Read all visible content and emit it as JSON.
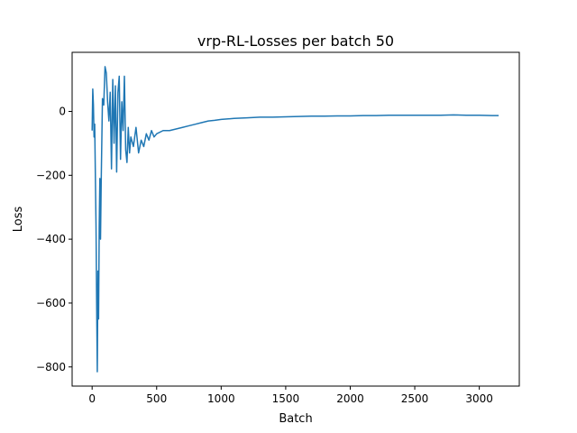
{
  "chart_data": {
    "type": "line",
    "title": "vrp-RL-Losses per batch 50",
    "xlabel": "Batch",
    "ylabel": "Loss",
    "xlim": [
      -155,
      3310
    ],
    "ylim": [
      -860,
      185
    ],
    "x_ticks": [
      0,
      500,
      1000,
      1500,
      2000,
      2500,
      3000
    ],
    "x_tick_labels": [
      "0",
      "500",
      "1000",
      "1500",
      "2000",
      "2500",
      "3000"
    ],
    "y_ticks": [
      -800,
      -600,
      -400,
      -200,
      0
    ],
    "y_tick_labels": [
      "−800",
      "−600",
      "−400",
      "−200",
      "0"
    ],
    "grid": false,
    "series": [
      {
        "color": "#1f77b4",
        "x": [
          0,
          5,
          10,
          15,
          20,
          25,
          30,
          35,
          40,
          45,
          50,
          55,
          60,
          65,
          70,
          80,
          90,
          100,
          110,
          120,
          130,
          140,
          150,
          160,
          170,
          180,
          190,
          200,
          210,
          220,
          230,
          240,
          250,
          260,
          270,
          280,
          290,
          300,
          320,
          340,
          360,
          380,
          400,
          420,
          440,
          460,
          480,
          500,
          550,
          600,
          650,
          700,
          750,
          800,
          850,
          900,
          950,
          1000,
          1100,
          1200,
          1300,
          1400,
          1500,
          1600,
          1700,
          1800,
          1900,
          2000,
          2100,
          2200,
          2300,
          2400,
          2500,
          2600,
          2700,
          2800,
          2900,
          3000,
          3100,
          3150
        ],
        "y": [
          -60,
          70,
          20,
          -80,
          -40,
          -200,
          -350,
          -600,
          -815,
          -500,
          -650,
          -360,
          -210,
          -400,
          -230,
          40,
          20,
          140,
          120,
          30,
          -30,
          60,
          -180,
          100,
          -100,
          80,
          -190,
          60,
          110,
          -150,
          30,
          -60,
          110,
          -120,
          -160,
          -50,
          -130,
          -80,
          -110,
          -50,
          -130,
          -90,
          -110,
          -70,
          -90,
          -60,
          -80,
          -70,
          -60,
          -60,
          -55,
          -50,
          -45,
          -40,
          -35,
          -30,
          -28,
          -25,
          -22,
          -20,
          -18,
          -18,
          -17,
          -16,
          -15,
          -15,
          -14,
          -14,
          -13,
          -13,
          -12,
          -12,
          -12,
          -12,
          -12,
          -11,
          -12,
          -12,
          -13,
          -13
        ]
      }
    ]
  }
}
